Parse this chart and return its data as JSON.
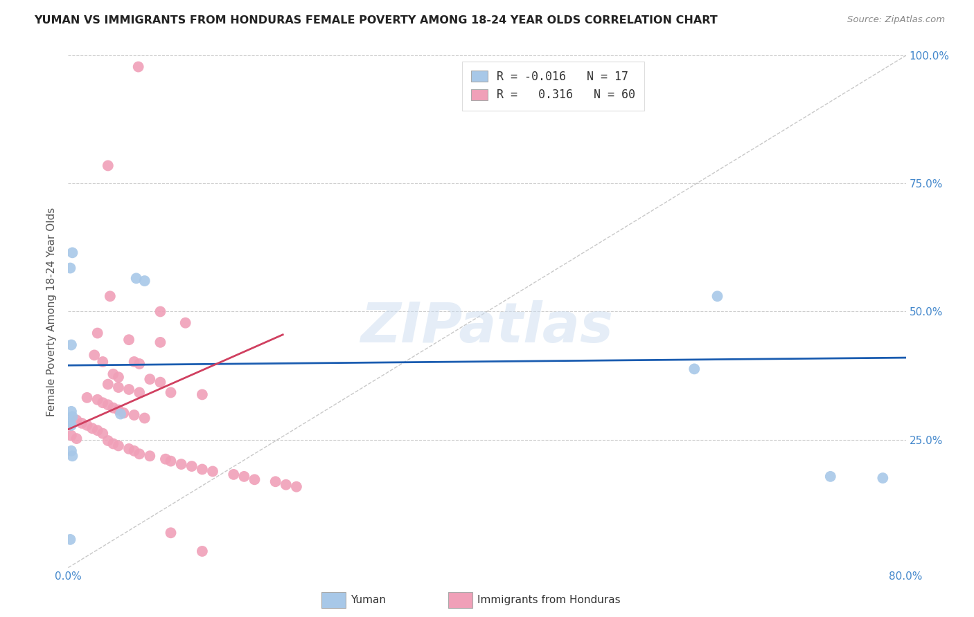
{
  "title": "YUMAN VS IMMIGRANTS FROM HONDURAS FEMALE POVERTY AMONG 18-24 YEAR OLDS CORRELATION CHART",
  "source": "Source: ZipAtlas.com",
  "ylabel": "Female Poverty Among 18-24 Year Olds",
  "xlim": [
    0.0,
    0.8
  ],
  "ylim": [
    0.0,
    1.0
  ],
  "xticks": [
    0.0,
    0.1,
    0.2,
    0.3,
    0.4,
    0.5,
    0.6,
    0.7,
    0.8
  ],
  "xticklabels": [
    "0.0%",
    "",
    "",
    "",
    "",
    "",
    "",
    "",
    "80.0%"
  ],
  "yticks": [
    0.0,
    0.25,
    0.5,
    0.75,
    1.0
  ],
  "yticklabels": [
    "",
    "25.0%",
    "50.0%",
    "75.0%",
    "100.0%"
  ],
  "color_blue": "#a8c8e8",
  "color_pink": "#f0a0b8",
  "color_line_blue": "#1a5cb0",
  "color_line_pink": "#d04060",
  "color_diag": "#bbbbbb",
  "watermark": "ZIPatlas",
  "blue_r": -0.016,
  "blue_n": 17,
  "pink_r": 0.316,
  "pink_n": 60,
  "blue_line_x": [
    0.0,
    0.8
  ],
  "blue_line_y": [
    0.395,
    0.41
  ],
  "pink_line_x": [
    0.0,
    0.205
  ],
  "pink_line_y": [
    0.27,
    0.455
  ],
  "blue_points": [
    [
      0.004,
      0.615
    ],
    [
      0.002,
      0.585
    ],
    [
      0.065,
      0.565
    ],
    [
      0.073,
      0.56
    ],
    [
      0.003,
      0.435
    ],
    [
      0.003,
      0.305
    ],
    [
      0.004,
      0.295
    ],
    [
      0.002,
      0.285
    ],
    [
      0.003,
      0.278
    ],
    [
      0.05,
      0.3
    ],
    [
      0.003,
      0.228
    ],
    [
      0.004,
      0.218
    ],
    [
      0.62,
      0.53
    ],
    [
      0.598,
      0.388
    ],
    [
      0.728,
      0.178
    ],
    [
      0.778,
      0.175
    ],
    [
      0.002,
      0.055
    ]
  ],
  "pink_points": [
    [
      0.067,
      0.978
    ],
    [
      0.038,
      0.785
    ],
    [
      0.04,
      0.53
    ],
    [
      0.088,
      0.5
    ],
    [
      0.112,
      0.478
    ],
    [
      0.028,
      0.458
    ],
    [
      0.058,
      0.445
    ],
    [
      0.088,
      0.44
    ],
    [
      0.025,
      0.415
    ],
    [
      0.033,
      0.402
    ],
    [
      0.063,
      0.402
    ],
    [
      0.068,
      0.398
    ],
    [
      0.043,
      0.378
    ],
    [
      0.048,
      0.372
    ],
    [
      0.078,
      0.368
    ],
    [
      0.088,
      0.362
    ],
    [
      0.038,
      0.358
    ],
    [
      0.048,
      0.352
    ],
    [
      0.058,
      0.348
    ],
    [
      0.068,
      0.342
    ],
    [
      0.098,
      0.342
    ],
    [
      0.128,
      0.338
    ],
    [
      0.018,
      0.332
    ],
    [
      0.028,
      0.328
    ],
    [
      0.033,
      0.322
    ],
    [
      0.038,
      0.318
    ],
    [
      0.043,
      0.312
    ],
    [
      0.048,
      0.308
    ],
    [
      0.053,
      0.302
    ],
    [
      0.063,
      0.298
    ],
    [
      0.073,
      0.292
    ],
    [
      0.008,
      0.288
    ],
    [
      0.013,
      0.282
    ],
    [
      0.018,
      0.278
    ],
    [
      0.023,
      0.272
    ],
    [
      0.028,
      0.268
    ],
    [
      0.033,
      0.262
    ],
    [
      0.003,
      0.258
    ],
    [
      0.008,
      0.252
    ],
    [
      0.038,
      0.248
    ],
    [
      0.043,
      0.242
    ],
    [
      0.048,
      0.238
    ],
    [
      0.058,
      0.232
    ],
    [
      0.063,
      0.228
    ],
    [
      0.068,
      0.222
    ],
    [
      0.078,
      0.218
    ],
    [
      0.093,
      0.212
    ],
    [
      0.098,
      0.208
    ],
    [
      0.108,
      0.202
    ],
    [
      0.118,
      0.198
    ],
    [
      0.128,
      0.192
    ],
    [
      0.138,
      0.188
    ],
    [
      0.158,
      0.182
    ],
    [
      0.168,
      0.178
    ],
    [
      0.178,
      0.172
    ],
    [
      0.198,
      0.168
    ],
    [
      0.208,
      0.162
    ],
    [
      0.218,
      0.158
    ],
    [
      0.098,
      0.068
    ],
    [
      0.128,
      0.032
    ]
  ]
}
